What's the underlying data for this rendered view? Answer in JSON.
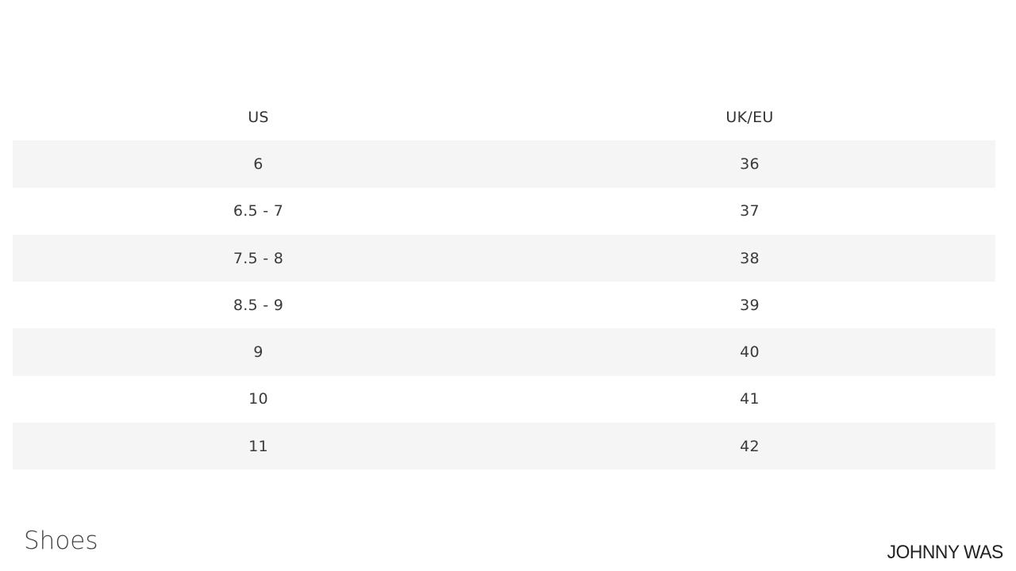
{
  "table": {
    "headers": [
      "US",
      "UK/EU"
    ],
    "rows": [
      [
        "6",
        "36"
      ],
      [
        "6.5 - 7",
        "37"
      ],
      [
        "7.5 - 8",
        "38"
      ],
      [
        "8.5 - 9",
        "39"
      ],
      [
        "9",
        "40"
      ],
      [
        "10",
        "41"
      ],
      [
        "11",
        "42"
      ]
    ]
  },
  "section_title": "Shoes",
  "brand": "JOHNNY WAS"
}
